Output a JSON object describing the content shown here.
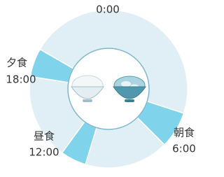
{
  "top_label": "0:00",
  "meals": [
    {
      "name": "朝食",
      "time": "6:00"
    },
    {
      "name": "昼食",
      "time": "12:00"
    },
    {
      "name": "夕食",
      "time": "18:00"
    }
  ]
}
